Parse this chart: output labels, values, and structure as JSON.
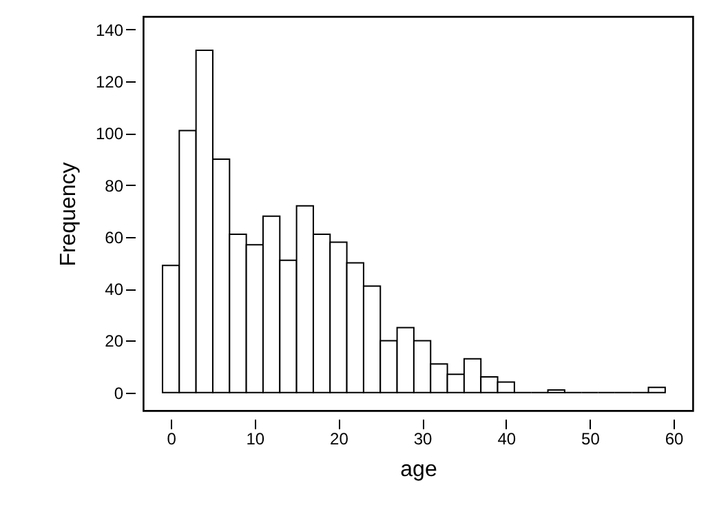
{
  "chart_data": {
    "type": "histogram",
    "xlabel": "age",
    "ylabel": "Frequency",
    "bins": [
      -1,
      1,
      3,
      5,
      7,
      9,
      11,
      13,
      15,
      17,
      19,
      21,
      23,
      25,
      27,
      29,
      31,
      33,
      35,
      37,
      39,
      41,
      43,
      45,
      47,
      49,
      51,
      53,
      55,
      57,
      59
    ],
    "values": [
      49,
      101,
      132,
      90,
      61,
      57,
      68,
      51,
      72,
      61,
      58,
      50,
      41,
      20,
      25,
      20,
      11,
      7,
      13,
      6,
      4,
      0,
      0,
      1,
      0,
      0,
      0,
      0,
      0,
      2
    ],
    "xlim": [
      -3.3,
      62.3
    ],
    "xticks": [
      0,
      10,
      20,
      30,
      40,
      50,
      60
    ],
    "ylim": [
      -7,
      145
    ],
    "yticks": [
      0,
      20,
      40,
      60,
      80,
      100,
      120,
      140
    ],
    "grid": false
  }
}
